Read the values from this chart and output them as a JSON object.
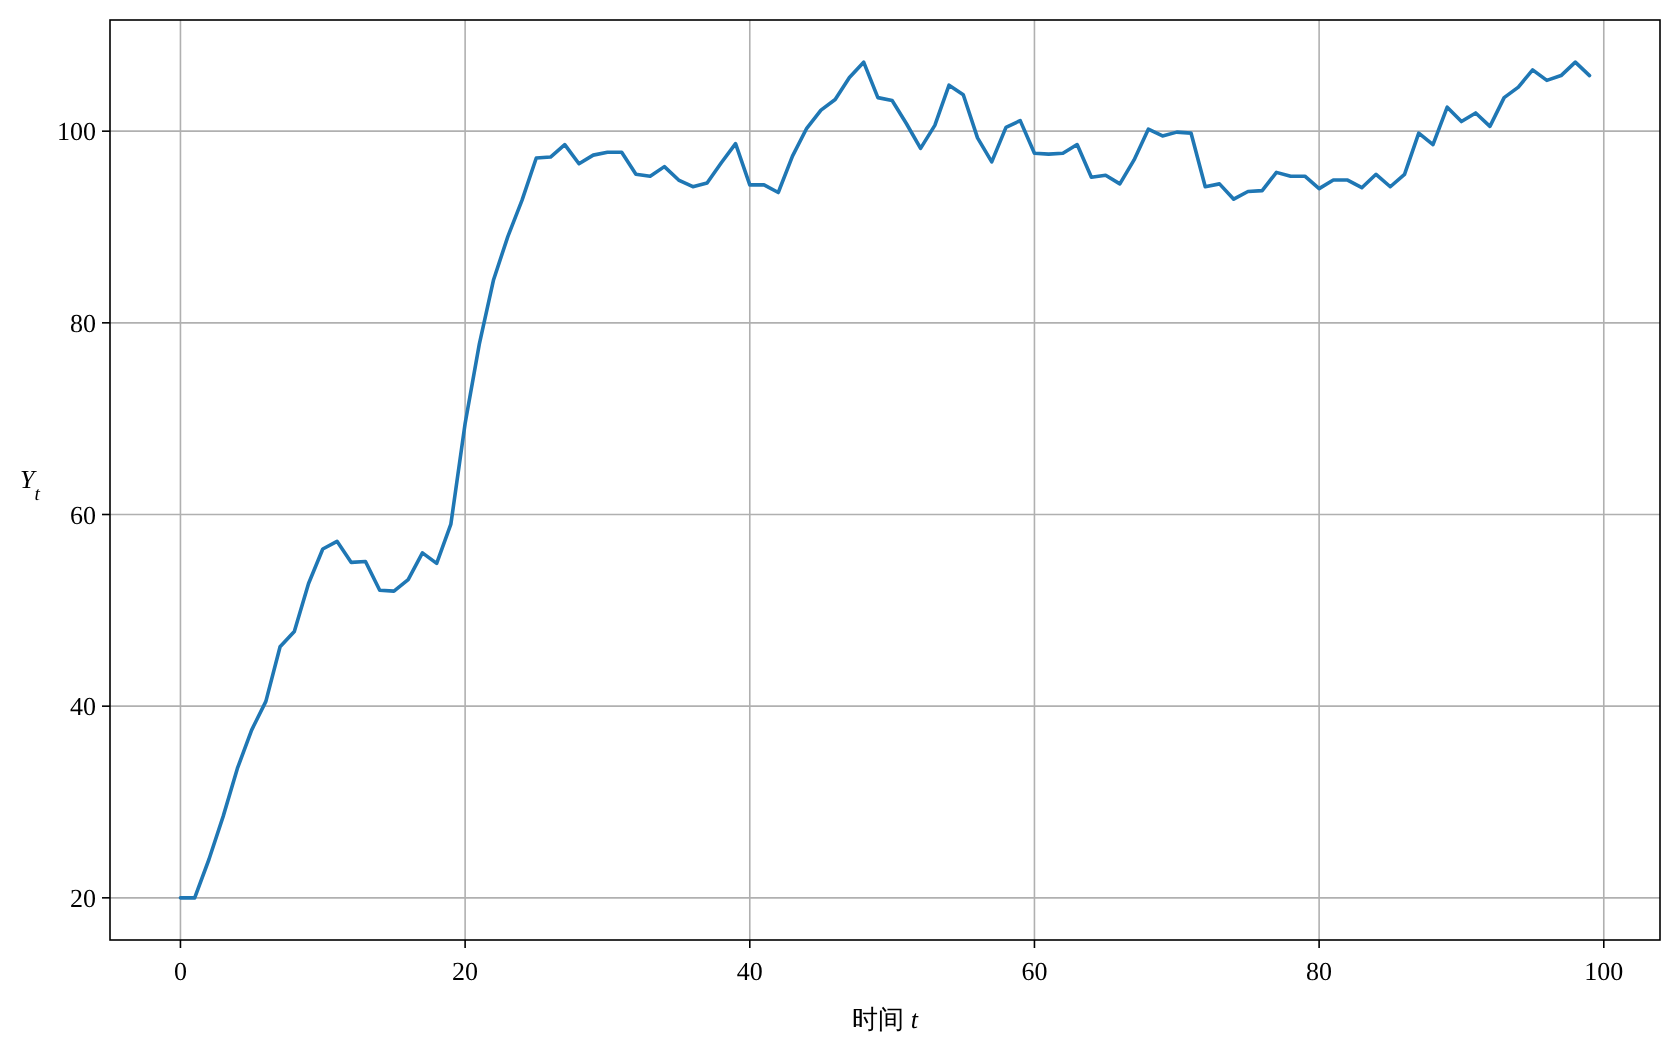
{
  "chart_data": {
    "type": "line",
    "xlabel": "时间 *t*",
    "ylabel": "*Y*$_{t}$",
    "x": [
      0,
      1,
      2,
      3,
      4,
      5,
      6,
      7,
      8,
      9,
      10,
      11,
      12,
      13,
      14,
      15,
      16,
      17,
      18,
      19,
      20,
      21,
      22,
      23,
      24,
      25,
      26,
      27,
      28,
      29,
      30,
      31,
      32,
      33,
      34,
      35,
      36,
      37,
      38,
      39,
      40,
      41,
      42,
      43,
      44,
      45,
      46,
      47,
      48,
      49,
      50,
      51,
      52,
      53,
      54,
      55,
      56,
      57,
      58,
      59,
      60,
      61,
      62,
      63,
      64,
      65,
      66,
      67,
      68,
      69,
      70,
      71,
      72,
      73,
      74,
      75,
      76,
      77,
      78,
      79,
      80,
      81,
      82,
      83,
      84,
      85,
      86,
      87,
      88,
      89,
      90,
      91,
      92,
      93,
      94,
      95,
      96,
      97,
      98,
      99
    ],
    "series": [
      {
        "color": "#1f77b4",
        "values": [
          20,
          20,
          24,
          28.5,
          33.5,
          37.5,
          40.5,
          46.2,
          47.8,
          52.8,
          56.4,
          57.2,
          55,
          55.1,
          52.1,
          52,
          53.2,
          56,
          54.9,
          59,
          69.5,
          77.8,
          84.5,
          89,
          92.8,
          97.2,
          97.3,
          98.6,
          96.6,
          97.5,
          97.8,
          97.8,
          95.5,
          95.3,
          96.3,
          94.9,
          94.2,
          94.6,
          96.7,
          98.7,
          94.4,
          94.4,
          93.6,
          97.4,
          100.3,
          102.2,
          103.3,
          105.6,
          107.2,
          103.5,
          103.2,
          100.8,
          98.2,
          100.6,
          104.8,
          103.8,
          99.3,
          96.8,
          100.4,
          101.1,
          97.7,
          97.6,
          97.7,
          98.6,
          95.2,
          95.4,
          94.5,
          97,
          100.2,
          99.5,
          99.9,
          99.8,
          94.2,
          94.5,
          92.9,
          93.7,
          93.8,
          95.7,
          95.3,
          95.3,
          94,
          94.9,
          94.9,
          94.1,
          95.5,
          94.2,
          95.5,
          99.8,
          98.6,
          102.5,
          101,
          101.9,
          100.5,
          103.5,
          104.6,
          106.4,
          105.3,
          105.8,
          107.2,
          105.8
        ]
      }
    ],
    "xlim": [
      -4.95,
      103.95
    ],
    "ylim": [
      15.6,
      111.6
    ],
    "xticks": [
      0,
      20,
      40,
      60,
      80,
      100
    ],
    "yticks": [
      20,
      40,
      60,
      80,
      100
    ],
    "grid": true,
    "line_style": "solid",
    "marker": "none"
  }
}
